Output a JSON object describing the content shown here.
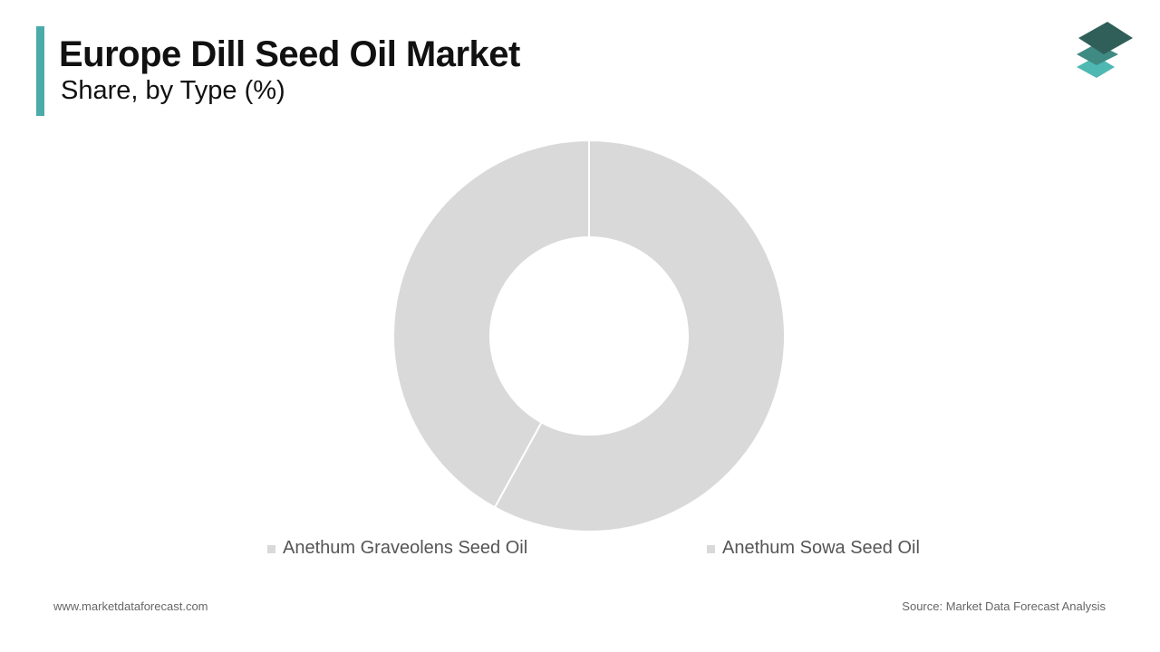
{
  "header": {
    "title": "Europe Dill Seed Oil Market",
    "subtitle": "Share, by Type (%)"
  },
  "colors": {
    "accent": "#4aaba8",
    "slice": "#d9d9d9",
    "logo_dark": "#2f5f58",
    "logo_mid": "#3f8a82",
    "logo_light": "#4fb8b3"
  },
  "logo": {
    "icon": "stacked-layers-icon"
  },
  "chart_data": {
    "type": "pie",
    "donut": true,
    "categories": [
      "Anethum Graveolens Seed Oil",
      "Anethum Sowa Seed Oil"
    ],
    "values": [
      58,
      42
    ],
    "legend_position": "bottom"
  },
  "footer": {
    "website": "www.marketdataforecast.com",
    "source": "Source: Market Data Forecast Analysis"
  }
}
